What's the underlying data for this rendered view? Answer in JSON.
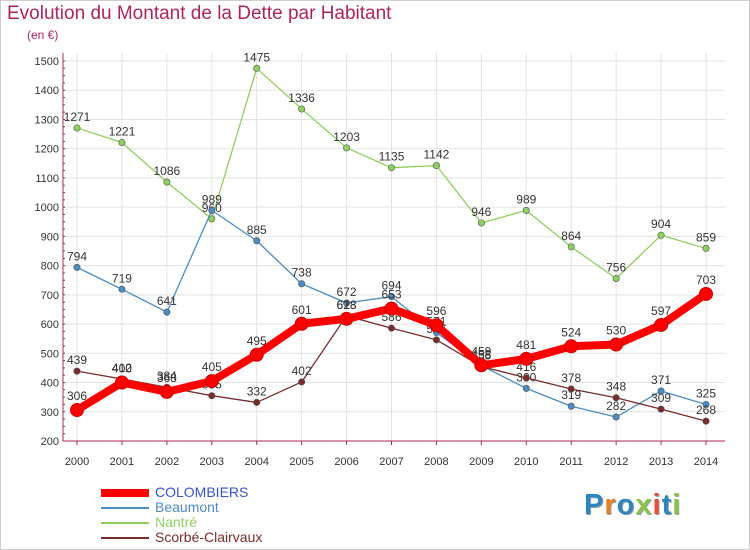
{
  "title": "Evolution du Montant de la Dette par Habitant",
  "subtitle": "(en €)",
  "logo": {
    "text": "Proxiti",
    "colors": [
      "#2e86c1",
      "#e67e22",
      "#2e86c1",
      "#8bc34a",
      "#e74c3c",
      "#2e86c1",
      "#8bc34a"
    ]
  },
  "chart_data": {
    "type": "line",
    "x": [
      "2000",
      "2001",
      "2002",
      "2003",
      "2004",
      "2005",
      "2006",
      "2007",
      "2008",
      "2009",
      "2010",
      "2011",
      "2012",
      "2013",
      "2014"
    ],
    "ylim": [
      200,
      1500
    ],
    "yticks": [
      200,
      300,
      400,
      500,
      600,
      700,
      800,
      900,
      1000,
      1100,
      1200,
      1300,
      1400,
      1500
    ],
    "grid": true,
    "legend": "bottom-left",
    "series": [
      {
        "name": "Nantré",
        "color": "#8ed05e",
        "values": [
          1271,
          1221,
          1086,
          960,
          1475,
          1336,
          1203,
          1135,
          1142,
          946,
          989,
          864,
          756,
          904,
          859
        ],
        "labels": [
          "1271",
          "1221",
          "1086",
          "960",
          "1475",
          "1336",
          "1203",
          "1135",
          "1142",
          "946",
          "989",
          "864",
          "756",
          "904",
          "859"
        ]
      },
      {
        "name": "Beaumont",
        "color": "#4a8cc4",
        "values": [
          794,
          719,
          641,
          989,
          885,
          738,
          672,
          694,
          571,
          458,
          380,
          319,
          282,
          371,
          325
        ],
        "labels": [
          "794",
          "719",
          "641",
          "989",
          "885",
          "738",
          "672",
          "694",
          "571",
          "458",
          "380",
          "319",
          "282",
          "371",
          "325"
        ]
      },
      {
        "name": "Scorbé-Clairvaux",
        "color": "#7a2b2b",
        "values": [
          439,
          412,
          384,
          355,
          332,
          402,
          628,
          586,
          546,
          455,
          416,
          378,
          348,
          309,
          268
        ],
        "labels": [
          "439",
          "412",
          "384",
          "355",
          "332",
          "402",
          "628",
          "586",
          "546",
          "455",
          "416",
          "378",
          "348",
          "309",
          "268"
        ]
      },
      {
        "name": "COLOMBIERS",
        "color": "#ff0000",
        "values": [
          306,
          400,
          368,
          405,
          495,
          601,
          618,
          653,
          596,
          459,
          481,
          524,
          530,
          597,
          703
        ],
        "labels": [
          "306",
          "400",
          "368",
          "405",
          "495",
          "601",
          "618",
          "653",
          "596",
          "459",
          "481",
          "524",
          "530",
          "597",
          "703"
        ]
      }
    ]
  },
  "legend_order": [
    "COLOMBIERS",
    "Beaumont",
    "Nantré",
    "Scorbé-Clairvaux"
  ]
}
